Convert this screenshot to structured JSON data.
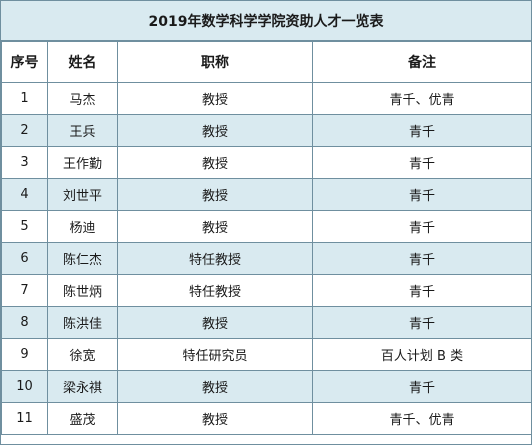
{
  "table": {
    "title": "2019年数学科学学院资助人才一览表",
    "headers": [
      "序号",
      "姓名",
      "职称",
      "备注"
    ],
    "rows": [
      {
        "no": "1",
        "name": "马杰",
        "title": "教授",
        "note": "青千、优青"
      },
      {
        "no": "2",
        "name": "王兵",
        "title": "教授",
        "note": "青千"
      },
      {
        "no": "3",
        "name": "王作勤",
        "title": "教授",
        "note": "青千"
      },
      {
        "no": "4",
        "name": "刘世平",
        "title": "教授",
        "note": "青千"
      },
      {
        "no": "5",
        "name": "杨迪",
        "title": "教授",
        "note": "青千"
      },
      {
        "no": "6",
        "name": "陈仁杰",
        "title": "特任教授",
        "note": "青千"
      },
      {
        "no": "7",
        "name": "陈世炳",
        "title": "特任教授",
        "note": "青千"
      },
      {
        "no": "8",
        "name": "陈洪佳",
        "title": "教授",
        "note": "青千"
      },
      {
        "no": "9",
        "name": "徐宽",
        "title": "特任研究员",
        "note": "百人计划 B 类"
      },
      {
        "no": "10",
        "name": "梁永祺",
        "title": "教授",
        "note": "青千"
      },
      {
        "no": "11",
        "name": "盛茂",
        "title": "教授",
        "note": "青千、优青"
      }
    ]
  },
  "colors": {
    "stripe": "#d9eaf0",
    "border": "#6f8f9f"
  }
}
